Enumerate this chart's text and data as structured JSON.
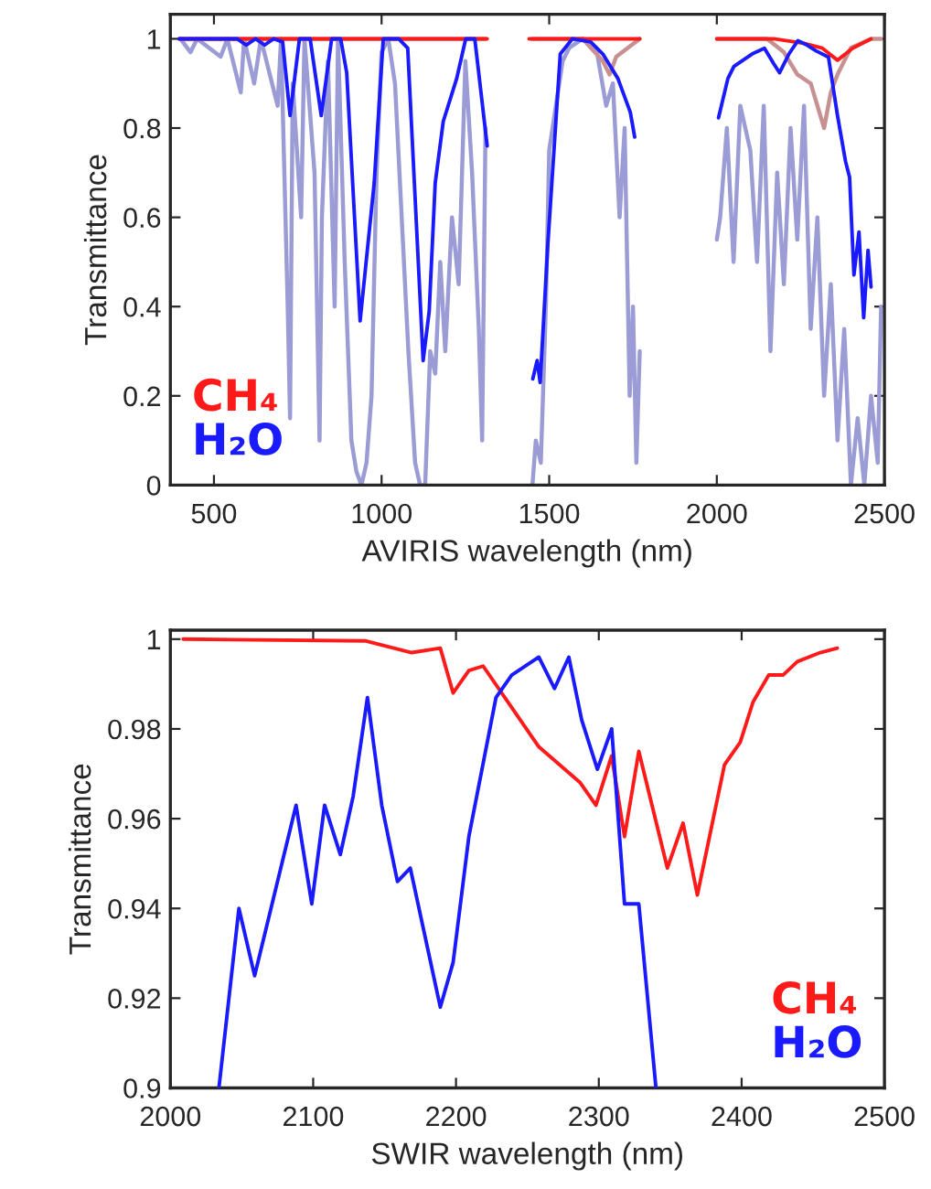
{
  "chart_data": [
    {
      "type": "line",
      "xlabel": "AVIRIS wavelength (nm)",
      "ylabel": "Transmittance",
      "xlim": [
        370,
        2500
      ],
      "ylim": [
        0,
        1.055
      ],
      "xticks": [
        500,
        1000,
        1500,
        2000,
        2500
      ],
      "yticks": [
        0,
        0.2,
        0.4,
        0.6,
        0.8,
        1
      ],
      "legend": "bottom left",
      "grid": false,
      "series": [
        {
          "color": "#9b9bd6",
          "x": [
            400,
            430,
            450,
            520,
            540,
            580,
            590,
            620,
            640,
            690,
            700,
            720,
            727,
            735,
            760,
            770,
            800,
            815,
            822,
            840,
            860,
            870,
            890,
            910,
            925,
            940,
            955,
            970,
            985,
            1000,
            1020,
            1040,
            1060,
            1080,
            1100,
            1115,
            1130,
            1145,
            1160,
            1175,
            1190,
            1210,
            1230,
            1250,
            1270,
            1290,
            1300,
            1310,
            1380,
            1450,
            1460,
            1475,
            1490,
            1500,
            1520,
            1540,
            1560,
            1600,
            1640,
            1670,
            1690,
            1710,
            1725,
            1740,
            1750,
            1760,
            1770,
            1880,
            2000,
            2010,
            2030,
            2050,
            2070,
            2100,
            2120,
            2140,
            2160,
            2180,
            2200,
            2220,
            2240,
            2260,
            2280,
            2300,
            2320,
            2340,
            2360,
            2380,
            2400,
            2420,
            2440,
            2460,
            2480,
            2490
          ],
          "values": [
            1,
            0.97,
            1,
            0.96,
            1,
            0.88,
            1,
            0.9,
            1,
            0.85,
            1,
            0.4,
            0.15,
            0.9,
            0.6,
            1,
            0.7,
            0.1,
            0.6,
            0.95,
            0.4,
            1,
            0.5,
            0.1,
            0.03,
            0,
            0.05,
            0.2,
            0.7,
            0.97,
            1,
            0.9,
            0.6,
            0.3,
            0.05,
            0,
            0,
            0.3,
            0.25,
            0.5,
            0.3,
            0.6,
            0.45,
            0.95,
            0.7,
            0.35,
            0.1,
            0.8,
            null,
            0,
            0.1,
            0.05,
            0.4,
            0.75,
            0.85,
            0.95,
            0.98,
            1,
            0.98,
            0.85,
            0.9,
            0.6,
            0.8,
            0.2,
            0.4,
            0.05,
            0.3,
            null,
            0.55,
            0.6,
            0.8,
            0.5,
            0.85,
            0.75,
            0.5,
            0.85,
            0.3,
            0.7,
            0.45,
            0.8,
            0.55,
            0.85,
            0.35,
            0.6,
            0.2,
            0.45,
            0.1,
            0.35,
            0,
            0.15,
            0,
            0.2,
            0.05,
            0.4
          ]
        },
        {
          "color": "#c89090",
          "x": [
            400,
            1310,
            1380,
            1450,
            1600,
            1660,
            1680,
            1700,
            1770,
            1880,
            2000,
            2150,
            2200,
            2240,
            2280,
            2300,
            2320,
            2340,
            2360,
            2380,
            2400,
            2460,
            2490
          ],
          "values": [
            1,
            1,
            null,
            1,
            1,
            0.95,
            0.92,
            0.96,
            1,
            null,
            1,
            1,
            0.97,
            0.92,
            0.9,
            0.85,
            0.8,
            0.88,
            0.92,
            0.95,
            0.98,
            1,
            1
          ]
        },
        {
          "name": "CH₄",
          "color": "#ff1a1a",
          "x": [
            396,
            1315,
            1380,
            1440,
            1770,
            1880,
            2000,
            2170,
            2260,
            2315,
            2360,
            2405,
            2460
          ],
          "values": [
            1,
            1,
            null,
            1,
            1,
            null,
            1,
            1,
            0.99,
            0.979,
            0.952,
            0.979,
            1
          ]
        },
        {
          "name": "H₂O",
          "color": "#1a1aff",
          "x": [
            396,
            569,
            596,
            624,
            651,
            678,
            705,
            727,
            755,
            787,
            820,
            851,
            878,
            896,
            936,
            978,
            1005,
            1051,
            1078,
            1124,
            1142,
            1160,
            1184,
            1224,
            1251,
            1278,
            1315,
            1380,
            1451,
            1464,
            1473,
            1496,
            1533,
            1569,
            1624,
            1660,
            1705,
            1742,
            1755,
            1880,
            2005,
            2033,
            2051,
            2078,
            2105,
            2142,
            2169,
            2187,
            2215,
            2242,
            2269,
            2296,
            2333,
            2360,
            2384,
            2396,
            2409,
            2424,
            2438,
            2451,
            2460
          ],
          "values": [
            1,
            1,
            0.986,
            1,
            0.986,
            1,
            0.993,
            0.828,
            1,
            1,
            0.828,
            1,
            1,
            0.924,
            0.368,
            0.677,
            1,
            1,
            0.979,
            0.279,
            0.389,
            0.677,
            0.815,
            0.911,
            1,
            1,
            0.76,
            null,
            0.238,
            0.279,
            0.23,
            0.54,
            0.966,
            1,
            0.993,
            0.966,
            0.911,
            0.835,
            0.78,
            null,
            0.823,
            0.911,
            0.938,
            0.952,
            0.966,
            0.979,
            0.945,
            0.924,
            0.966,
            0.996,
            0.986,
            0.973,
            0.959,
            0.828,
            0.725,
            0.69,
            0.471,
            0.567,
            0.375,
            0.526,
            0.444
          ]
        }
      ]
    },
    {
      "type": "line",
      "xlabel": "SWIR wavelength (nm)",
      "ylabel": "Transmittance",
      "xlim": [
        2000,
        2500
      ],
      "ylim": [
        0.9,
        1.002
      ],
      "xticks": [
        2000,
        2100,
        2200,
        2300,
        2400,
        2500
      ],
      "yticks": [
        0.9,
        0.92,
        0.94,
        0.96,
        0.98,
        1
      ],
      "legend": "bottom right",
      "grid": false,
      "series": [
        {
          "name": "CH₄",
          "color": "#ff1a1a",
          "x": [
            2009,
            2137,
            2169,
            2189,
            2198,
            2209,
            2219,
            2258,
            2287,
            2298,
            2309,
            2318,
            2328,
            2348,
            2359,
            2369,
            2388,
            2399,
            2408,
            2419,
            2429,
            2439,
            2455,
            2467
          ],
          "values": [
            1,
            0.9996,
            0.997,
            0.998,
            0.988,
            0.993,
            0.994,
            0.976,
            0.968,
            0.963,
            0.974,
            0.956,
            0.975,
            0.949,
            0.959,
            0.943,
            0.972,
            0.977,
            0.986,
            0.992,
            0.992,
            0.995,
            0.997,
            0.998
          ]
        },
        {
          "name": "H₂O",
          "color": "#1a1aff",
          "x": [
            2034,
            2048,
            2059,
            2088,
            2099,
            2108,
            2119,
            2128,
            2138,
            2148,
            2159,
            2168,
            2189,
            2198,
            2209,
            2228,
            2239,
            2258,
            2269,
            2279,
            2288,
            2299,
            2309,
            2318,
            2328,
            2340
          ],
          "values": [
            0.9,
            0.94,
            0.925,
            0.963,
            0.941,
            0.963,
            0.952,
            0.965,
            0.987,
            0.963,
            0.946,
            0.949,
            0.918,
            0.928,
            0.956,
            0.987,
            0.992,
            0.996,
            0.989,
            0.996,
            0.982,
            0.971,
            0.98,
            0.941,
            0.941,
            0.9
          ]
        }
      ]
    }
  ]
}
